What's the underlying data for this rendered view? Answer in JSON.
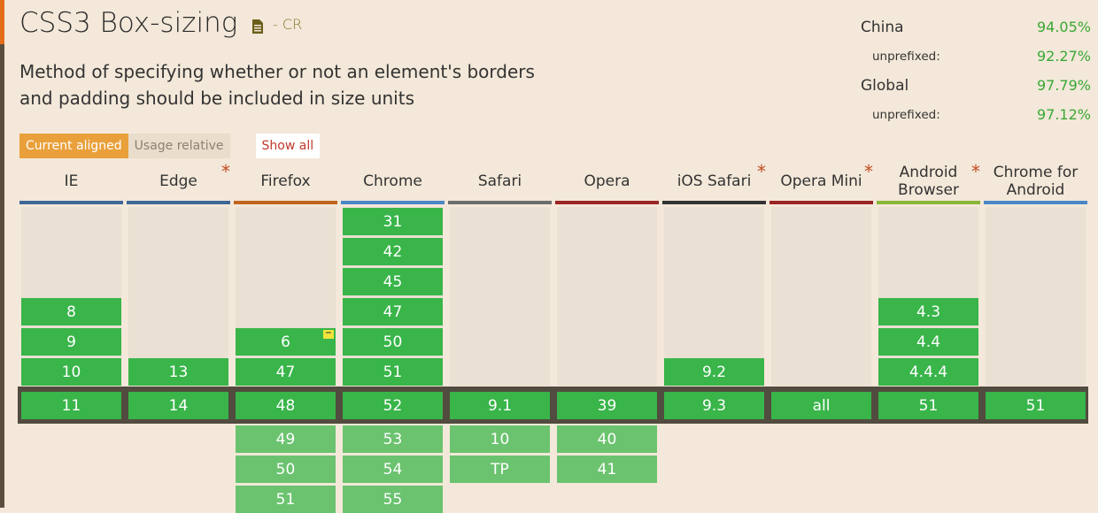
{
  "feature": {
    "title": "CSS3 Box-sizing",
    "status": "- CR",
    "description": "Method of specifying whether or not an element's borders and padding should be included in size units"
  },
  "usage": {
    "region": "China",
    "region_value": "94.05%",
    "region_unprefixed_label": "unprefixed:",
    "region_unprefixed": "92.27%",
    "global": "Global",
    "global_value": "97.79%",
    "global_unprefixed_label": "unprefixed:",
    "global_unprefixed": "97.12%"
  },
  "view_buttons": {
    "current_aligned": "Current aligned",
    "usage_relative": "Usage relative",
    "show_all": "Show all"
  },
  "colors": {
    "supported": "#39b54a",
    "future": "#6bc36f",
    "accent": "#e9a03a"
  },
  "browsers": [
    {
      "name": "IE",
      "star": false,
      "color": "#3e6797",
      "past": [
        "8",
        "9",
        "10"
      ],
      "current": "11",
      "future": []
    },
    {
      "name": "Edge",
      "star": true,
      "color": "#3e6797",
      "past": [
        "13"
      ],
      "current": "14",
      "future": []
    },
    {
      "name": "Firefox",
      "star": false,
      "color": "#c0651d",
      "past": [
        "6",
        "47"
      ],
      "current": "48",
      "future": [
        "49",
        "50",
        "51"
      ],
      "notes": {
        "6": "−"
      }
    },
    {
      "name": "Chrome",
      "star": false,
      "color": "#4a86c7",
      "past": [
        "31",
        "42",
        "45",
        "47",
        "50",
        "51"
      ],
      "current": "52",
      "future": [
        "53",
        "54",
        "55"
      ]
    },
    {
      "name": "Safari",
      "star": false,
      "color": "#6d6d6d",
      "past": [],
      "current": "9.1",
      "future": [
        "10",
        "TP"
      ]
    },
    {
      "name": "Opera",
      "star": false,
      "color": "#9b2424",
      "past": [],
      "current": "39",
      "future": [
        "40",
        "41"
      ]
    },
    {
      "name": "iOS Safari",
      "star": true,
      "color": "#333333",
      "past": [
        "9.2"
      ],
      "current": "9.3",
      "future": []
    },
    {
      "name": "Opera Mini",
      "star": true,
      "color": "#9b2424",
      "past": [],
      "current": "all",
      "future": []
    },
    {
      "name": "Android Browser",
      "star": true,
      "color": "#8ab638",
      "past": [
        "4.3",
        "4.4",
        "4.4.4"
      ],
      "current": "51",
      "future": []
    },
    {
      "name": "Chrome for Android",
      "star": false,
      "color": "#4a86c7",
      "past": [],
      "current": "51",
      "future": []
    }
  ]
}
